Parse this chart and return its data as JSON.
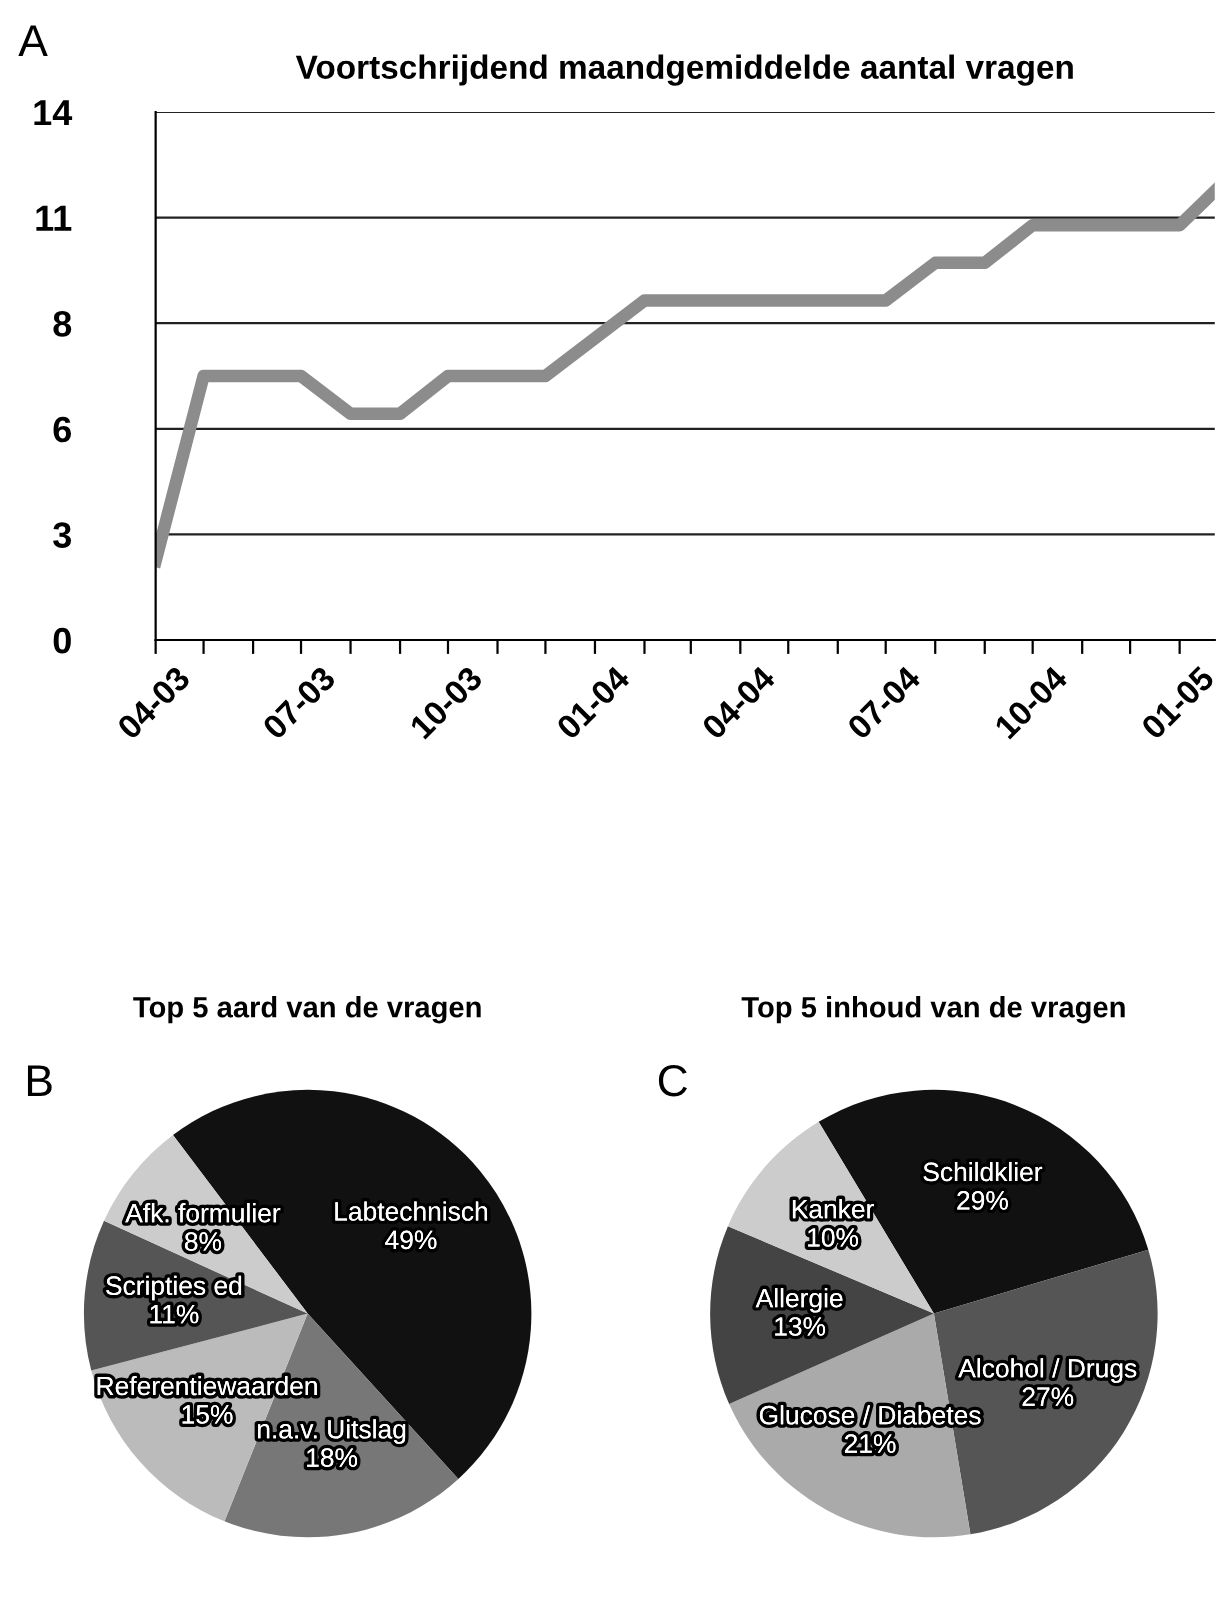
{
  "chart_data": [
    {
      "type": "line",
      "title": "Voortschrijdend maandgemiddelde aantal vragen",
      "annotations": [
        "A"
      ],
      "x": [
        "2003-04",
        "2003-05",
        "2003-06",
        "2003-07",
        "2003-08",
        "2003-09",
        "2003-10",
        "2003-11",
        "2003-12",
        "2004-01",
        "2004-02",
        "2004-03",
        "2004-04",
        "2004-05",
        "2004-06",
        "2004-07",
        "2004-08",
        "2004-09",
        "2004-10",
        "2004-11",
        "2004-12",
        "2005-01",
        "2005-01-23"
      ],
      "series": [
        {
          "color": "#8c8c8c",
          "values": [
            2.1,
            7.0,
            7.0,
            7.0,
            6.0,
            6.0,
            7.0,
            7.0,
            7.0,
            8.0,
            9.0,
            9.0,
            9.0,
            9.0,
            9.0,
            9.0,
            10.0,
            10.0,
            11.0,
            11.0,
            11.0,
            11.0,
            11.9
          ]
        }
      ],
      "xlim": [
        "2003-04",
        "2005-01-23"
      ],
      "xticks": [
        {
          "value": "2003-04",
          "label": "04-03"
        },
        {
          "value": "2003-05",
          "label": null
        },
        {
          "value": "2003-06",
          "label": null
        },
        {
          "value": "2003-07",
          "label": "07-03"
        },
        {
          "value": "2003-08",
          "label": null
        },
        {
          "value": "2003-09",
          "label": null
        },
        {
          "value": "2003-10",
          "label": "10-03"
        },
        {
          "value": "2003-11",
          "label": null
        },
        {
          "value": "2003-12",
          "label": null
        },
        {
          "value": "2004-01",
          "label": "01-04"
        },
        {
          "value": "2004-02",
          "label": null
        },
        {
          "value": "2004-03",
          "label": null
        },
        {
          "value": "2004-04",
          "label": "04-04"
        },
        {
          "value": "2004-05",
          "label": null
        },
        {
          "value": "2004-06",
          "label": null
        },
        {
          "value": "2004-07",
          "label": "07-04"
        },
        {
          "value": "2004-08",
          "label": null
        },
        {
          "value": "2004-09",
          "label": null
        },
        {
          "value": "2004-10",
          "label": "10-04"
        },
        {
          "value": "2004-11",
          "label": null
        },
        {
          "value": "2004-12",
          "label": null
        },
        {
          "value": "2005-01",
          "label": "01-05"
        }
      ],
      "ylim": [
        0,
        14
      ],
      "yticks": [
        0,
        {
          "value": 2.8,
          "label": "3"
        },
        {
          "value": 5.6,
          "label": "6"
        },
        {
          "value": 8.4,
          "label": "8"
        },
        {
          "value": 11.2,
          "label": "11"
        },
        14
      ],
      "grid": "y",
      "legend": false,
      "marker": "none",
      "line_style": "solid"
    },
    {
      "type": "pie",
      "title": "Top 5 aard van de vragen",
      "annotations": [
        "B"
      ],
      "categories": [
        "Labtechnisch",
        "n.a.v. Uitslag",
        "Referentiewaarden",
        "Scripties ed",
        "Afk. formulier"
      ],
      "values": [
        49,
        18,
        15,
        11,
        8
      ],
      "value_labels": [
        "49%",
        "18%",
        "15%",
        "11%",
        "8%"
      ],
      "colors": [
        "#111111",
        "#777777",
        "#bbbbbb",
        "#555555",
        "#cccccc"
      ]
    },
    {
      "type": "pie",
      "title": "Top 5 inhoud van de vragen",
      "annotations": [
        "C"
      ],
      "categories": [
        "Schildklier",
        "Alcohol / Drugs",
        "Glucose / Diabetes",
        "Allergie",
        "Kanker"
      ],
      "values": [
        29,
        27,
        21,
        13,
        10
      ],
      "value_labels": [
        "29%",
        "27%",
        "21%",
        "13%",
        "10%"
      ],
      "colors": [
        "#111111",
        "#555555",
        "#aaaaaa",
        "#444444",
        "#cccccc"
      ]
    }
  ]
}
